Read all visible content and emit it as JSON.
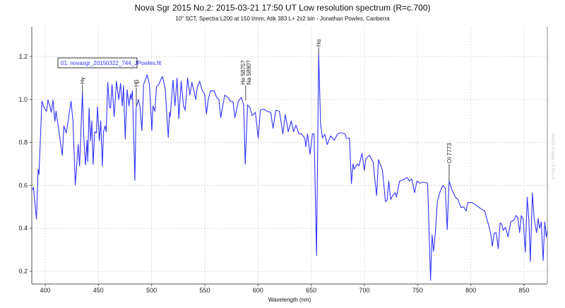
{
  "chart_data": {
    "type": "line",
    "title": "Nova Sgr 2015 No.2: 2015-03-21 17:50 UT Low resolution spectrum (R=c.700)",
    "subtitle": "10\" SCT, Spectra L200 at 150 l/mm, Atik 383 L+ 2x2 bin - Jonathan Powles, Canberra",
    "xlabel": "Wavelength (nm)",
    "ylabel": "",
    "xlim": [
      387.4,
      871.9
    ],
    "ylim": [
      0.141,
      1.338
    ],
    "xticks": [
      "400",
      "450",
      "500",
      "550",
      "600",
      "650",
      "700",
      "750",
      "800",
      "850"
    ],
    "yticks": [
      "0.2",
      "0.4",
      "0.6",
      "0.8",
      "1.0",
      "1.2"
    ],
    "grid": true,
    "legend": {
      "position": "top-left",
      "entries": [
        "01: novasgr_20150322_744_JPowles.fit"
      ]
    },
    "line_color": "#3333ff",
    "watermark": "BASS Project 1.6 Rev 0",
    "annotations": [
      {
        "label": "Hγ",
        "x": 435
      },
      {
        "label": "Hβ",
        "x": 485.6
      },
      {
        "label": "He 5875?",
        "x": 588.4
      },
      {
        "label": "Na 5890?",
        "x": 588.4
      },
      {
        "label": "Hα",
        "x": 657
      },
      {
        "label": "OI 7773",
        "x": 779.6
      }
    ],
    "series": [
      {
        "x": [
          388,
          389,
          391.8,
          393.4,
          394.2,
          396.9,
          399.1,
          401.2,
          402.6,
          404.4,
          405.8,
          407.3,
          409.1,
          410.2,
          413.9,
          416.1,
          417.6,
          419.8,
          421.6,
          424.3,
          426.1,
          428.3,
          431,
          432.3,
          435,
          436.1,
          437.9,
          439.4,
          440,
          441.2,
          442.7,
          443.8,
          445.1,
          446.5,
          448.2,
          449.1,
          450.9,
          452.2,
          453.7,
          454.8,
          456.2,
          457.3,
          458.8,
          460.4,
          461.5,
          462.8,
          464.8,
          467,
          469.2,
          470.8,
          472.5,
          473.6,
          475.2,
          477,
          478.7,
          480.1,
          480.7,
          482,
          484.3,
          485.4,
          487.6,
          489.1,
          490.9,
          492.5,
          494.7,
          495.8,
          498,
          500.2,
          501.3,
          503.1,
          504.6,
          506.8,
          509.7,
          510.2,
          512.8,
          515.7,
          516.8,
          517.5,
          520.1,
          521.9,
          523.9,
          525.6,
          527.8,
          530,
          531.6,
          533.8,
          536,
          537.8,
          540,
          541.5,
          542.9,
          545.1,
          547.7,
          549.9,
          551.5,
          553.2,
          555.4,
          558.8,
          561,
          563.2,
          565,
          567.2,
          568.8,
          571.6,
          574.3,
          576.5,
          578.3,
          581.4,
          584.3,
          586.5,
          588,
          590.2,
          592.4,
          594.6,
          597.5,
          600.2,
          602.2,
          605.3,
          608.6,
          611.9,
          614.1,
          616.8,
          620.1,
          623.4,
          625.6,
          628.4,
          631.3,
          633.5,
          635.7,
          638.4,
          640.6,
          643.9,
          645,
          646.6,
          648.8,
          651.2,
          652.7,
          655,
          657,
          658.8,
          660.6,
          662.8,
          665,
          668.3,
          671.6,
          674.9,
          678.2,
          681.6,
          683.1,
          686,
          687.8,
          689.3,
          690.4,
          693.3,
          694.9,
          697.7,
          699.9,
          701.4,
          704.8,
          708.1,
          711.4,
          713.2,
          716.9,
          719.8,
          721.3,
          722.9,
          724.6,
          726.8,
          729.1,
          730.1,
          733,
          736.7,
          740,
          742.2,
          744.4,
          745.5,
          747.1,
          749.3,
          752.1,
          755.4,
          759.4,
          762.1,
          763.6,
          765,
          766.7,
          768.5,
          771.1,
          773.8,
          776,
          777.8,
          779.6,
          782.2,
          785.5,
          787.8,
          790.6,
          793.3,
          795.5,
          797.2,
          801,
          804.3,
          808.7,
          813.1,
          816.4,
          818.7,
          820.2,
          822,
          823.8,
          825.8,
          827.5,
          829.1,
          830.4,
          832.6,
          834.9,
          837.5,
          840.8,
          842.4,
          844.1,
          845.9,
          847.4,
          849.2,
          851.2,
          853,
          854.5,
          855.9,
          857.8,
          859.5,
          861.8,
          863.3,
          864.6,
          866.2,
          867.9,
          869.5,
          871,
          871.7
        ],
        "y": [
          0.58,
          0.59,
          0.443,
          0.674,
          0.652,
          0.992,
          0.96,
          0.945,
          0.997,
          0.969,
          0.94,
          0.997,
          0.898,
          0.945,
          0.816,
          0.74,
          0.877,
          0.844,
          0.9,
          0.992,
          0.9,
          0.602,
          0.79,
          0.69,
          1.036,
          0.84,
          0.695,
          0.81,
          0.71,
          0.96,
          0.808,
          0.9,
          0.697,
          0.85,
          0.844,
          0.965,
          0.808,
          0.9,
          0.69,
          0.85,
          0.877,
          0.85,
          1.08,
          0.965,
          0.96,
          1.07,
          0.92,
          1.085,
          1.0,
          1.075,
          0.97,
          1.065,
          0.815,
          1.045,
          0.97,
          1.025,
          1.0,
          1.04,
          0.624,
          0.96,
          1.0,
          0.965,
          0.855,
          1.07,
          1.1,
          1.115,
          1.07,
          0.855,
          0.97,
          0.945,
          1.06,
          1.07,
          1.105,
          1.107,
          1.05,
          0.822,
          0.94,
          0.92,
          1.09,
          0.97,
          1.1,
          0.91,
          1.085,
          0.97,
          0.95,
          1.1,
          1.02,
          1.08,
          1.035,
          1.0,
          1.055,
          1.085,
          1.04,
          1.025,
          0.932,
          1.0,
          1.04,
          1.04,
          1.01,
          1.0,
          0.915,
          0.98,
          1.02,
          1.01,
          0.99,
          0.99,
          0.915,
          0.99,
          1.01,
          0.975,
          0.698,
          0.975,
          0.96,
          0.925,
          0.94,
          0.82,
          0.95,
          0.955,
          0.945,
          0.94,
          0.866,
          0.95,
          0.945,
          0.84,
          0.93,
          0.85,
          0.9,
          0.85,
          0.88,
          0.84,
          0.84,
          0.82,
          0.78,
          0.84,
          0.745,
          0.84,
          0.84,
          0.273,
          1.216,
          0.887,
          0.82,
          0.838,
          0.79,
          0.83,
          0.81,
          0.84,
          0.845,
          0.84,
          0.82,
          0.82,
          0.608,
          0.7,
          0.675,
          0.7,
          0.69,
          0.75,
          0.67,
          0.725,
          0.74,
          0.71,
          0.553,
          0.72,
          0.67,
          0.524,
          0.53,
          0.62,
          0.534,
          0.555,
          0.566,
          0.545,
          0.62,
          0.626,
          0.637,
          0.62,
          0.63,
          0.605,
          0.566,
          0.62,
          0.61,
          0.615,
          0.61,
          0.158,
          0.37,
          0.293,
          0.38,
          0.524,
          0.57,
          0.6,
          0.587,
          0.394,
          0.62,
          0.58,
          0.545,
          0.535,
          0.497,
          0.5,
          0.48,
          0.52,
          0.52,
          0.51,
          0.494,
          0.48,
          0.42,
          0.377,
          0.317,
          0.377,
          0.38,
          0.305,
          0.425,
          0.42,
          0.39,
          0.405,
          0.36,
          0.43,
          0.44,
          0.46,
          0.45,
          0.38,
          0.46,
          0.44,
          0.29,
          0.545,
          0.44,
          0.246,
          0.565,
          0.445,
          0.38,
          0.445,
          0.4,
          0.43,
          0.25,
          0.43,
          0.36,
          0.39
        ]
      }
    ]
  }
}
